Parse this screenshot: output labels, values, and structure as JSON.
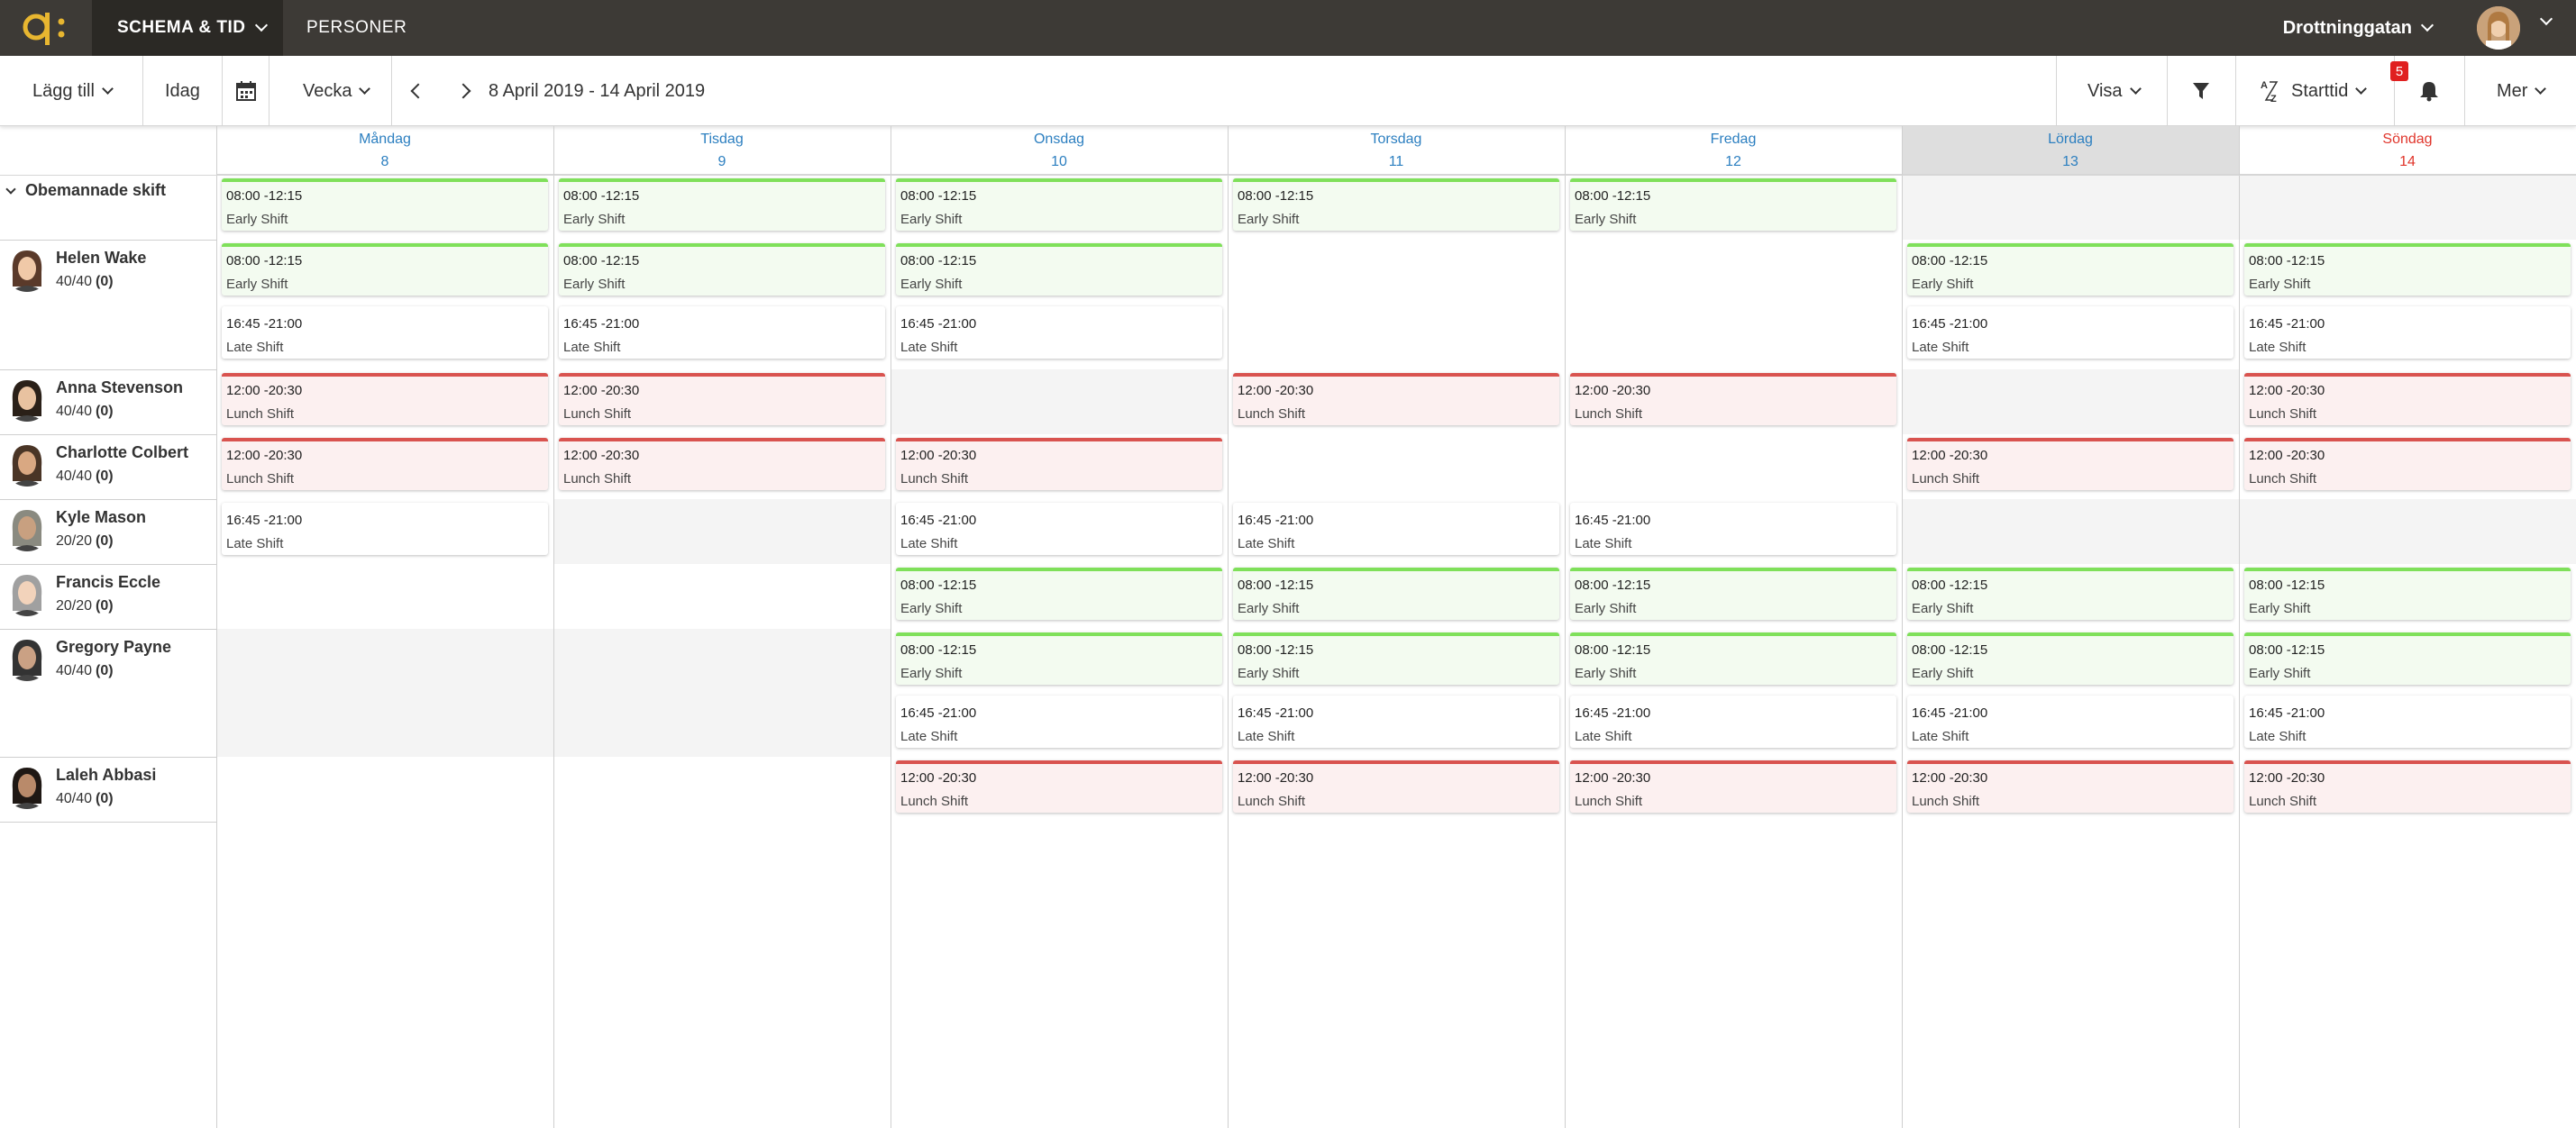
{
  "nav": {
    "module": "SCHEMA & TID",
    "personer": "PERSONER",
    "store": "Drottninggatan"
  },
  "toolbar": {
    "add": "Lägg till",
    "today": "Idag",
    "period": "Vecka",
    "range": "8 April 2019 - 14 April 2019",
    "view": "Visa",
    "sort": "Starttid",
    "notifications": "5",
    "more": "Mer"
  },
  "colors": {
    "early": "#7fe05a",
    "lunch": "#d9534f",
    "weekday": "#2c7fc0",
    "sunday": "#e0352b",
    "nav": "#3d3a36"
  },
  "days": [
    {
      "name": "Måndag",
      "num": "8"
    },
    {
      "name": "Tisdag",
      "num": "9"
    },
    {
      "name": "Onsdag",
      "num": "10"
    },
    {
      "name": "Torsdag",
      "num": "11"
    },
    {
      "name": "Fredag",
      "num": "12"
    },
    {
      "name": "Lördag",
      "num": "13"
    },
    {
      "name": "Söndag",
      "num": "14"
    }
  ],
  "unassigned_label": "Obemannade skift",
  "people": [
    {
      "name": "Helen Wake",
      "hours": "40/40",
      "extra": "(0)"
    },
    {
      "name": "Anna Stevenson",
      "hours": "40/40",
      "extra": "(0)"
    },
    {
      "name": "Charlotte Colbert",
      "hours": "40/40",
      "extra": "(0)"
    },
    {
      "name": "Kyle Mason",
      "hours": "20/20",
      "extra": "(0)"
    },
    {
      "name": "Francis Eccle",
      "hours": "20/20",
      "extra": "(0)"
    },
    {
      "name": "Gregory Payne",
      "hours": "40/40",
      "extra": "(0)"
    },
    {
      "name": "Laleh Abbasi",
      "hours": "40/40",
      "extra": "(0)"
    }
  ],
  "shift_types": {
    "early": {
      "time": "08:00 -12:15",
      "name": "Early Shift"
    },
    "late": {
      "time": "16:45 -21:00",
      "name": "Late Shift"
    },
    "lunch": {
      "time": "12:00 -20:30",
      "name": "Lunch Shift"
    }
  },
  "shifts": [
    {
      "row": "Obemannade skift",
      "day": "Måndag",
      "type": "early"
    },
    {
      "row": "Obemannade skift",
      "day": "Tisdag",
      "type": "early"
    },
    {
      "row": "Obemannade skift",
      "day": "Onsdag",
      "type": "early"
    },
    {
      "row": "Obemannade skift",
      "day": "Torsdag",
      "type": "early"
    },
    {
      "row": "Obemannade skift",
      "day": "Fredag",
      "type": "early"
    },
    {
      "row": "Helen Wake",
      "day": "Måndag",
      "type": "early"
    },
    {
      "row": "Helen Wake",
      "day": "Måndag",
      "type": "late"
    },
    {
      "row": "Helen Wake",
      "day": "Tisdag",
      "type": "early"
    },
    {
      "row": "Helen Wake",
      "day": "Tisdag",
      "type": "late"
    },
    {
      "row": "Helen Wake",
      "day": "Onsdag",
      "type": "early"
    },
    {
      "row": "Helen Wake",
      "day": "Onsdag",
      "type": "late"
    },
    {
      "row": "Helen Wake",
      "day": "Lördag",
      "type": "early"
    },
    {
      "row": "Helen Wake",
      "day": "Lördag",
      "type": "late"
    },
    {
      "row": "Helen Wake",
      "day": "Söndag",
      "type": "early"
    },
    {
      "row": "Helen Wake",
      "day": "Söndag",
      "type": "late"
    },
    {
      "row": "Anna Stevenson",
      "day": "Måndag",
      "type": "lunch"
    },
    {
      "row": "Anna Stevenson",
      "day": "Tisdag",
      "type": "lunch"
    },
    {
      "row": "Anna Stevenson",
      "day": "Torsdag",
      "type": "lunch"
    },
    {
      "row": "Anna Stevenson",
      "day": "Fredag",
      "type": "lunch"
    },
    {
      "row": "Anna Stevenson",
      "day": "Söndag",
      "type": "lunch"
    },
    {
      "row": "Charlotte Colbert",
      "day": "Måndag",
      "type": "lunch"
    },
    {
      "row": "Charlotte Colbert",
      "day": "Tisdag",
      "type": "lunch"
    },
    {
      "row": "Charlotte Colbert",
      "day": "Onsdag",
      "type": "lunch"
    },
    {
      "row": "Charlotte Colbert",
      "day": "Lördag",
      "type": "lunch"
    },
    {
      "row": "Charlotte Colbert",
      "day": "Söndag",
      "type": "lunch"
    },
    {
      "row": "Kyle Mason",
      "day": "Måndag",
      "type": "late"
    },
    {
      "row": "Kyle Mason",
      "day": "Onsdag",
      "type": "late"
    },
    {
      "row": "Kyle Mason",
      "day": "Torsdag",
      "type": "late"
    },
    {
      "row": "Kyle Mason",
      "day": "Fredag",
      "type": "late"
    },
    {
      "row": "Francis Eccle",
      "day": "Onsdag",
      "type": "early"
    },
    {
      "row": "Francis Eccle",
      "day": "Torsdag",
      "type": "early"
    },
    {
      "row": "Francis Eccle",
      "day": "Fredag",
      "type": "early"
    },
    {
      "row": "Francis Eccle",
      "day": "Lördag",
      "type": "early"
    },
    {
      "row": "Francis Eccle",
      "day": "Söndag",
      "type": "early"
    },
    {
      "row": "Gregory Payne",
      "day": "Onsdag",
      "type": "early"
    },
    {
      "row": "Gregory Payne",
      "day": "Onsdag",
      "type": "late"
    },
    {
      "row": "Gregory Payne",
      "day": "Torsdag",
      "type": "early"
    },
    {
      "row": "Gregory Payne",
      "day": "Torsdag",
      "type": "late"
    },
    {
      "row": "Gregory Payne",
      "day": "Fredag",
      "type": "early"
    },
    {
      "row": "Gregory Payne",
      "day": "Fredag",
      "type": "late"
    },
    {
      "row": "Gregory Payne",
      "day": "Lördag",
      "type": "early"
    },
    {
      "row": "Gregory Payne",
      "day": "Lördag",
      "type": "late"
    },
    {
      "row": "Gregory Payne",
      "day": "Söndag",
      "type": "early"
    },
    {
      "row": "Gregory Payne",
      "day": "Söndag",
      "type": "late"
    },
    {
      "row": "Laleh Abbasi",
      "day": "Onsdag",
      "type": "lunch"
    },
    {
      "row": "Laleh Abbasi",
      "day": "Torsdag",
      "type": "lunch"
    },
    {
      "row": "Laleh Abbasi",
      "day": "Fredag",
      "type": "lunch"
    },
    {
      "row": "Laleh Abbasi",
      "day": "Lördag",
      "type": "lunch"
    },
    {
      "row": "Laleh Abbasi",
      "day": "Söndag",
      "type": "lunch"
    }
  ]
}
